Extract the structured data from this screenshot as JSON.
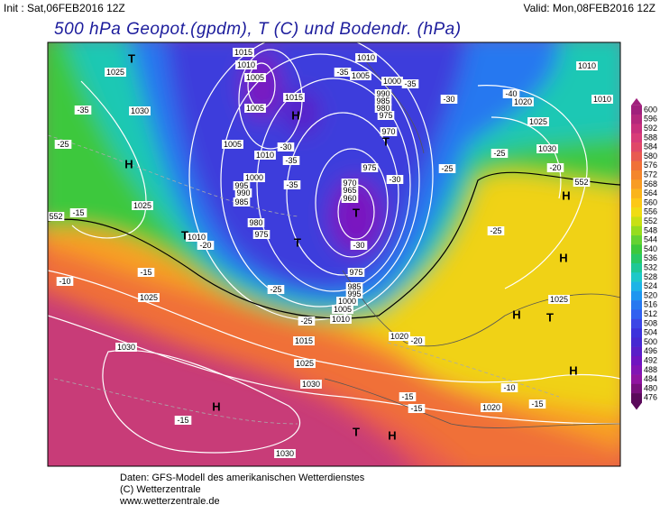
{
  "header": {
    "init": "Init : Sat,06FEB2016 12Z",
    "valid": "Valid: Mon,08FEB2016 12Z",
    "title": "500 hPa Geopot.(gpdm), T (C) und Bodendr. (hPa)"
  },
  "footer": [
    "Daten: GFS-Modell des amerikanischen Wetterdienstes",
    "(C) Wetterzentrale",
    "www.wetterzentrale.de"
  ],
  "colorbar": {
    "labels": [
      600,
      596,
      592,
      588,
      584,
      580,
      576,
      572,
      568,
      564,
      560,
      556,
      552,
      548,
      544,
      540,
      536,
      532,
      528,
      524,
      520,
      516,
      512,
      508,
      504,
      500,
      496,
      492,
      488,
      484,
      480,
      476
    ],
    "colors": [
      "#a0207c",
      "#b4287c",
      "#c8307c",
      "#d83c78",
      "#e04868",
      "#e85a50",
      "#f07038",
      "#f4862c",
      "#f89c24",
      "#fab41c",
      "#fcc818",
      "#f0dc14",
      "#c8e014",
      "#96dc1e",
      "#64d232",
      "#3cc83c",
      "#28c864",
      "#1ec896",
      "#1ec8c8",
      "#1eb4e6",
      "#1e96f0",
      "#2878f0",
      "#3260f0",
      "#3c46e6",
      "#3c32dc",
      "#4628d2",
      "#5a1ec8",
      "#7014c0",
      "#8214b4",
      "#9014a0",
      "#78107c",
      "#5a0a5a"
    ]
  },
  "map": {
    "isobar_labels": [
      "1025",
      "1030",
      "1025",
      "1010",
      "1015",
      "1010",
      "1005",
      "1005",
      "1005",
      "1010",
      "1000",
      "995",
      "990",
      "985",
      "980",
      "975",
      "1015",
      "1010",
      "1005",
      "1000",
      "990",
      "985",
      "980",
      "975",
      "970",
      "975",
      "970",
      "965",
      "960",
      "975",
      "985",
      "995",
      "1000",
      "1005",
      "1010",
      "1015",
      "1025",
      "1030",
      "1025",
      "1030",
      "1020",
      "1020",
      "1025",
      "1020",
      "1025",
      "1030",
      "1010",
      "1010",
      "1030"
    ],
    "temperature_labels": [
      "-35",
      "-35",
      "-30",
      "-40",
      "-35",
      "-25",
      "-25",
      "-30",
      "-35",
      "-25",
      "-30",
      "-35",
      "-15",
      "-25",
      "-20",
      "-30",
      "-25",
      "-20",
      "-10",
      "-15",
      "-25",
      "-25",
      "-20",
      "-15",
      "-15",
      "-10",
      "-15",
      "-15"
    ],
    "height_labels": [
      "552",
      "552"
    ],
    "centers": [
      "H",
      "H",
      "H",
      "T",
      "T",
      "T",
      "T",
      "T",
      "T",
      "H",
      "H",
      "H",
      "T",
      "H",
      "H"
    ]
  }
}
